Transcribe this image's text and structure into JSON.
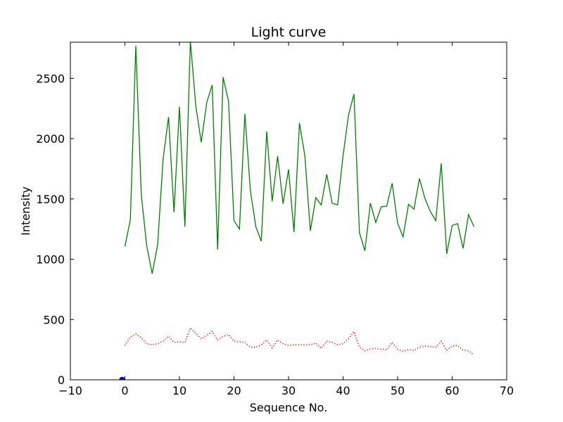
{
  "chart_data": {
    "type": "line",
    "title": "Light curve",
    "xlabel": "Sequence No.",
    "ylabel": "Intensity",
    "xlim": [
      -10,
      70
    ],
    "ylim": [
      0,
      2800
    ],
    "x_ticks": [
      -10,
      0,
      10,
      20,
      30,
      40,
      50,
      60,
      70
    ],
    "x_tick_labels": [
      "−10",
      "0",
      "10",
      "20",
      "30",
      "40",
      "50",
      "60",
      "70"
    ],
    "y_ticks": [
      0,
      500,
      1000,
      1500,
      2000,
      2500
    ],
    "y_tick_labels": [
      "0",
      "500",
      "1000",
      "1500",
      "2000",
      "2500"
    ],
    "grid": false,
    "series": [
      {
        "color": "#008000",
        "line_style": "solid",
        "x": [
          0,
          1,
          2,
          3,
          4,
          5,
          6,
          7,
          8,
          9,
          10,
          11,
          12,
          13,
          14,
          15,
          16,
          17,
          18,
          19,
          20,
          21,
          22,
          23,
          24,
          25,
          26,
          27,
          28,
          29,
          30,
          31,
          32,
          33,
          34,
          35,
          36,
          37,
          38,
          39,
          40,
          41,
          42,
          43,
          44,
          45,
          46,
          47,
          48,
          49,
          50,
          51,
          52,
          53,
          54,
          55,
          56,
          57,
          58,
          59,
          60,
          61,
          62,
          63,
          64
        ],
        "values": [
          1105,
          1330,
          2770,
          1535,
          1110,
          880,
          1120,
          1830,
          2180,
          1390,
          2265,
          1270,
          2810,
          2270,
          1970,
          2300,
          2445,
          1080,
          2510,
          2310,
          1320,
          1250,
          2205,
          1570,
          1270,
          1150,
          2060,
          1480,
          1855,
          1460,
          1745,
          1225,
          2130,
          1855,
          1235,
          1510,
          1450,
          1705,
          1465,
          1450,
          1860,
          2195,
          2370,
          1220,
          1070,
          1465,
          1305,
          1435,
          1440,
          1630,
          1300,
          1185,
          1455,
          1415,
          1670,
          1505,
          1395,
          1320,
          1795,
          1045,
          1280,
          1295,
          1090,
          1370,
          1270
        ]
      },
      {
        "color": "#ff0000",
        "line_style": "dotted",
        "x": [
          0,
          1,
          2,
          3,
          4,
          5,
          6,
          7,
          8,
          9,
          10,
          11,
          12,
          13,
          14,
          15,
          16,
          17,
          18,
          19,
          20,
          21,
          22,
          23,
          24,
          25,
          26,
          27,
          28,
          29,
          30,
          31,
          32,
          33,
          34,
          35,
          36,
          37,
          38,
          39,
          40,
          41,
          42,
          43,
          44,
          45,
          46,
          47,
          48,
          49,
          50,
          51,
          52,
          53,
          54,
          55,
          56,
          57,
          58,
          59,
          60,
          61,
          62,
          63,
          64
        ],
        "values": [
          285,
          355,
          380,
          350,
          300,
          290,
          300,
          320,
          360,
          310,
          315,
          310,
          430,
          385,
          340,
          370,
          400,
          330,
          360,
          375,
          320,
          315,
          310,
          270,
          270,
          290,
          330,
          265,
          330,
          300,
          285,
          290,
          290,
          290,
          290,
          305,
          260,
          320,
          310,
          290,
          300,
          340,
          400,
          270,
          240,
          255,
          260,
          255,
          250,
          310,
          255,
          235,
          250,
          245,
          270,
          280,
          275,
          270,
          320,
          245,
          280,
          285,
          245,
          240,
          205
        ]
      },
      {
        "color": "#0000ff",
        "marker": "circle",
        "x": [
          -0.5
        ],
        "values": [
          0
        ]
      }
    ]
  }
}
